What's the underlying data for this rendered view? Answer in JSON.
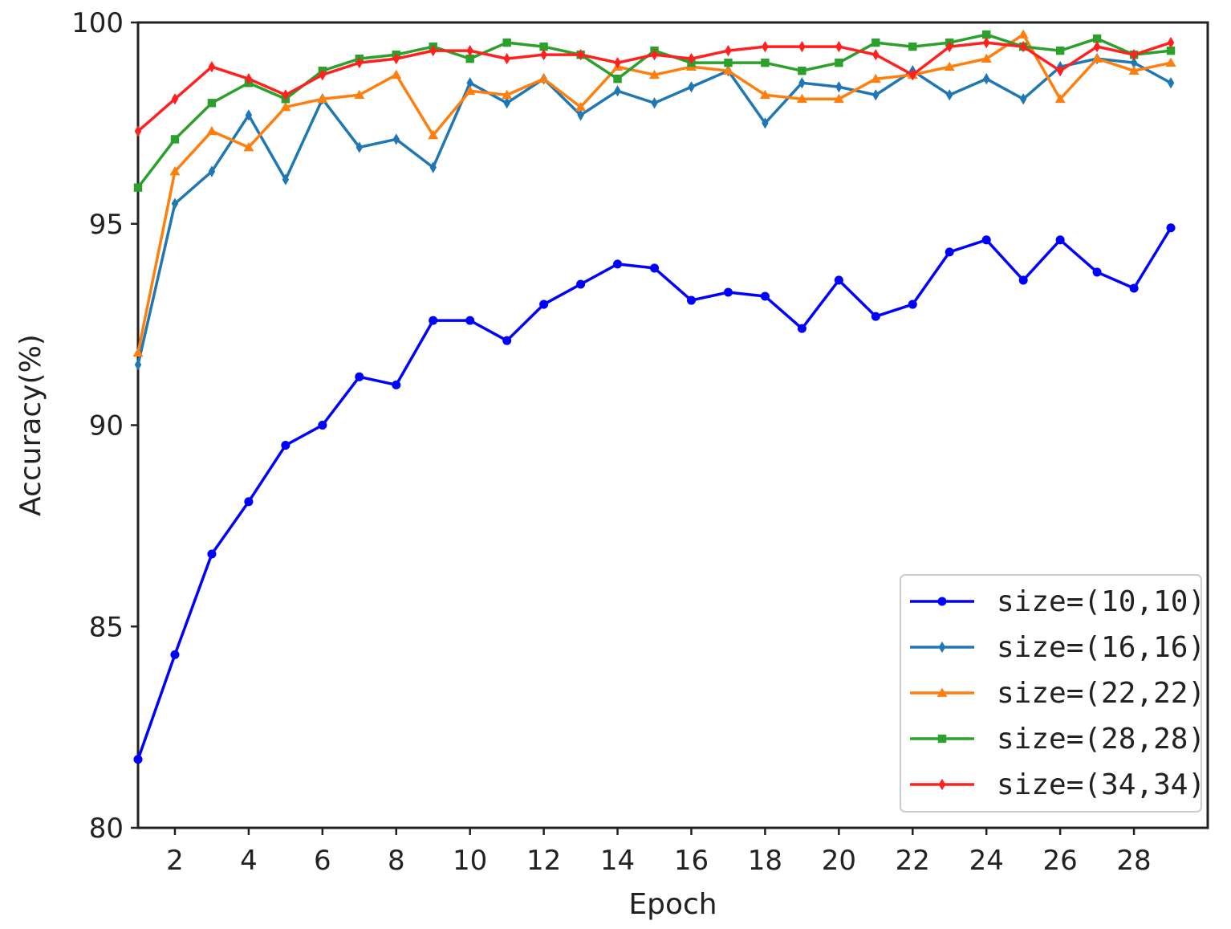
{
  "chart_data": {
    "type": "line",
    "xlabel": "Epoch",
    "ylabel": "Accuracy(%)",
    "xlim": [
      1,
      30
    ],
    "ylim": [
      80,
      100
    ],
    "xticks": [
      2,
      4,
      6,
      8,
      10,
      12,
      14,
      16,
      18,
      20,
      22,
      24,
      26,
      28
    ],
    "yticks": [
      80,
      85,
      90,
      95,
      100
    ],
    "legend_position": "lower-right",
    "x": [
      1,
      2,
      3,
      4,
      5,
      6,
      7,
      8,
      9,
      10,
      11,
      12,
      13,
      14,
      15,
      16,
      17,
      18,
      19,
      20,
      21,
      22,
      23,
      24,
      25,
      26,
      27,
      28,
      29
    ],
    "series": [
      {
        "name": "size=(10,10)",
        "color": "#0000ff",
        "marker": "circle",
        "values": [
          81.7,
          84.3,
          86.8,
          88.1,
          89.5,
          90.0,
          91.2,
          91.0,
          92.6,
          92.6,
          92.1,
          93.0,
          93.5,
          94.0,
          93.9,
          93.1,
          93.3,
          93.2,
          92.4,
          93.6,
          92.7,
          93.0,
          94.3,
          94.6,
          93.6,
          94.6,
          93.8,
          93.4,
          94.9
        ]
      },
      {
        "name": "size=(16,16)",
        "color": "#1f77b4",
        "marker": "diamond",
        "values": [
          91.5,
          95.5,
          96.3,
          97.7,
          96.1,
          98.1,
          96.9,
          97.1,
          96.4,
          98.5,
          98.0,
          98.6,
          97.7,
          98.3,
          98.0,
          98.4,
          98.8,
          97.5,
          98.5,
          98.4,
          98.2,
          98.8,
          98.2,
          98.6,
          98.1,
          98.9,
          99.1,
          99.0,
          98.5
        ]
      },
      {
        "name": "size=(22,22)",
        "color": "#ff7f0e",
        "marker": "triangle",
        "values": [
          91.8,
          96.3,
          97.3,
          96.9,
          97.9,
          98.1,
          98.2,
          98.7,
          97.2,
          98.3,
          98.2,
          98.6,
          97.9,
          98.9,
          98.7,
          98.9,
          98.8,
          98.2,
          98.1,
          98.1,
          98.6,
          98.7,
          98.9,
          99.1,
          99.7,
          98.1,
          99.1,
          98.8,
          99.0
        ]
      },
      {
        "name": "size=(28,28)",
        "color": "#2ca02c",
        "marker": "square",
        "values": [
          95.9,
          97.1,
          98.0,
          98.5,
          98.1,
          98.8,
          99.1,
          99.2,
          99.4,
          99.1,
          99.5,
          99.4,
          99.2,
          98.6,
          99.3,
          99.0,
          99.0,
          99.0,
          98.8,
          99.0,
          99.5,
          99.4,
          99.5,
          99.7,
          99.4,
          99.3,
          99.6,
          99.2,
          99.3
        ]
      },
      {
        "name": "size=(34,34)",
        "color": "#ff2020",
        "marker": "diamond",
        "values": [
          97.3,
          98.1,
          98.9,
          98.6,
          98.2,
          98.7,
          99.0,
          99.1,
          99.3,
          99.3,
          99.1,
          99.2,
          99.2,
          99.0,
          99.2,
          99.1,
          99.3,
          99.4,
          99.4,
          99.4,
          99.2,
          98.7,
          99.4,
          99.5,
          99.4,
          98.8,
          99.4,
          99.2,
          99.5
        ]
      }
    ]
  }
}
